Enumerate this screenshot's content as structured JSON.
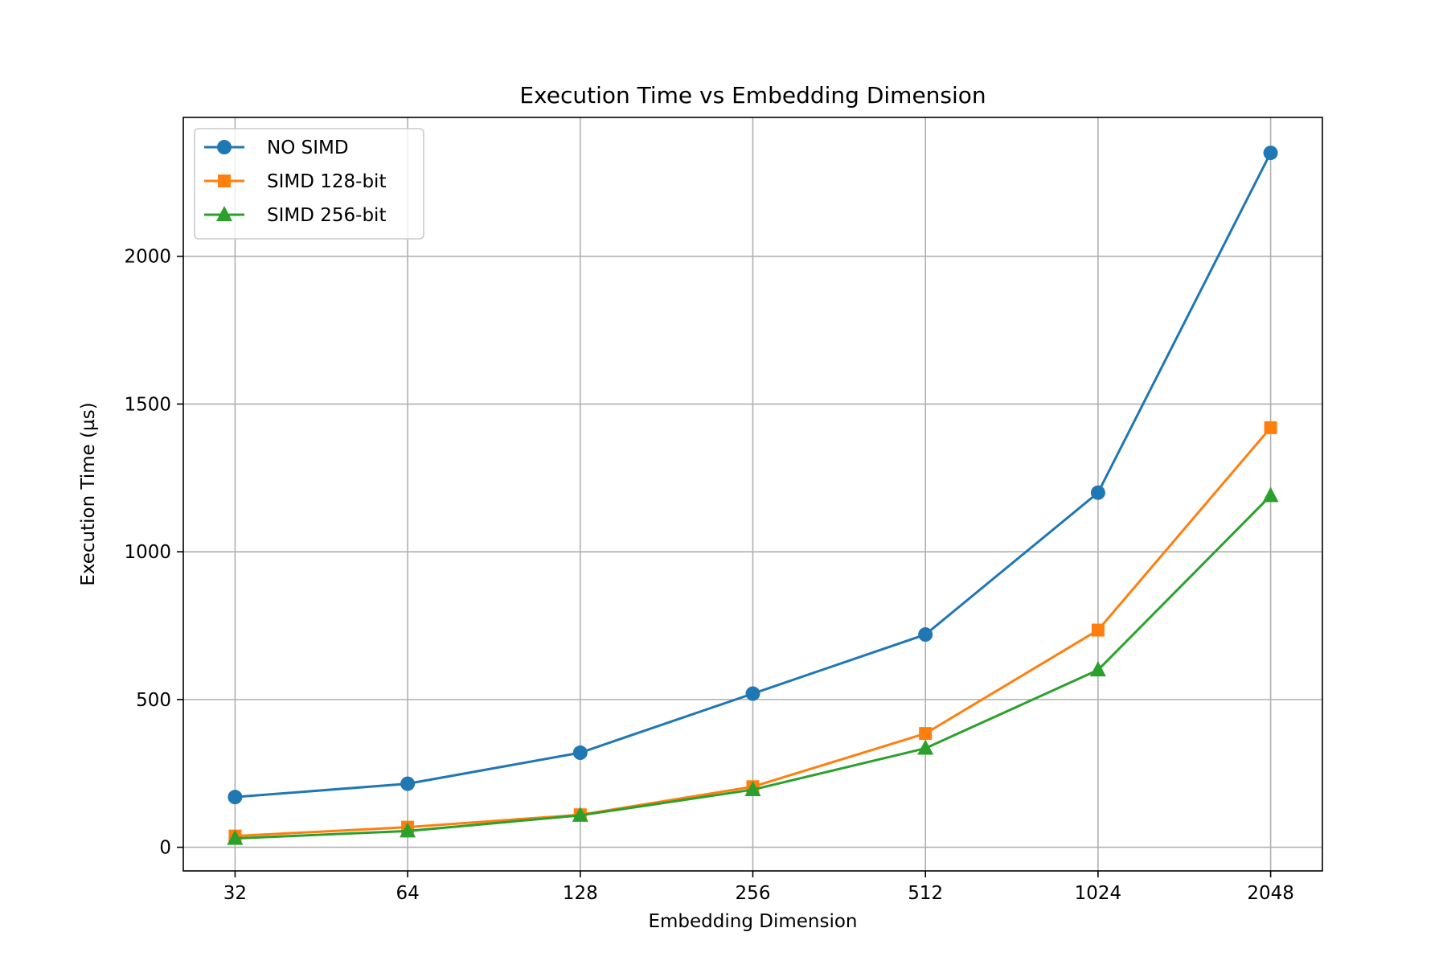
{
  "chart_data": {
    "type": "line",
    "title": "Execution Time vs Embedding Dimension",
    "xlabel": "Embedding Dimension",
    "ylabel": "Execution Time (µs)",
    "x_scale": "log2",
    "categories": [
      "32",
      "64",
      "128",
      "256",
      "512",
      "1024",
      "2048"
    ],
    "x": [
      32,
      64,
      128,
      256,
      512,
      1024,
      2048
    ],
    "ylim": [
      -80,
      2470
    ],
    "yticks": [
      0,
      500,
      1000,
      1500,
      2000
    ],
    "grid": true,
    "legend_position": "top-left",
    "series": [
      {
        "name": "NO SIMD",
        "color": "#1f77b4",
        "marker": "circle",
        "values": [
          170,
          215,
          320,
          520,
          720,
          1200,
          2350
        ]
      },
      {
        "name": "SIMD 128-bit",
        "color": "#ff7f0e",
        "marker": "square",
        "values": [
          38,
          68,
          110,
          205,
          385,
          735,
          1420
        ]
      },
      {
        "name": "SIMD 256-bit",
        "color": "#2ca02c",
        "marker": "triangle",
        "values": [
          30,
          55,
          108,
          195,
          335,
          600,
          1190
        ]
      }
    ]
  }
}
